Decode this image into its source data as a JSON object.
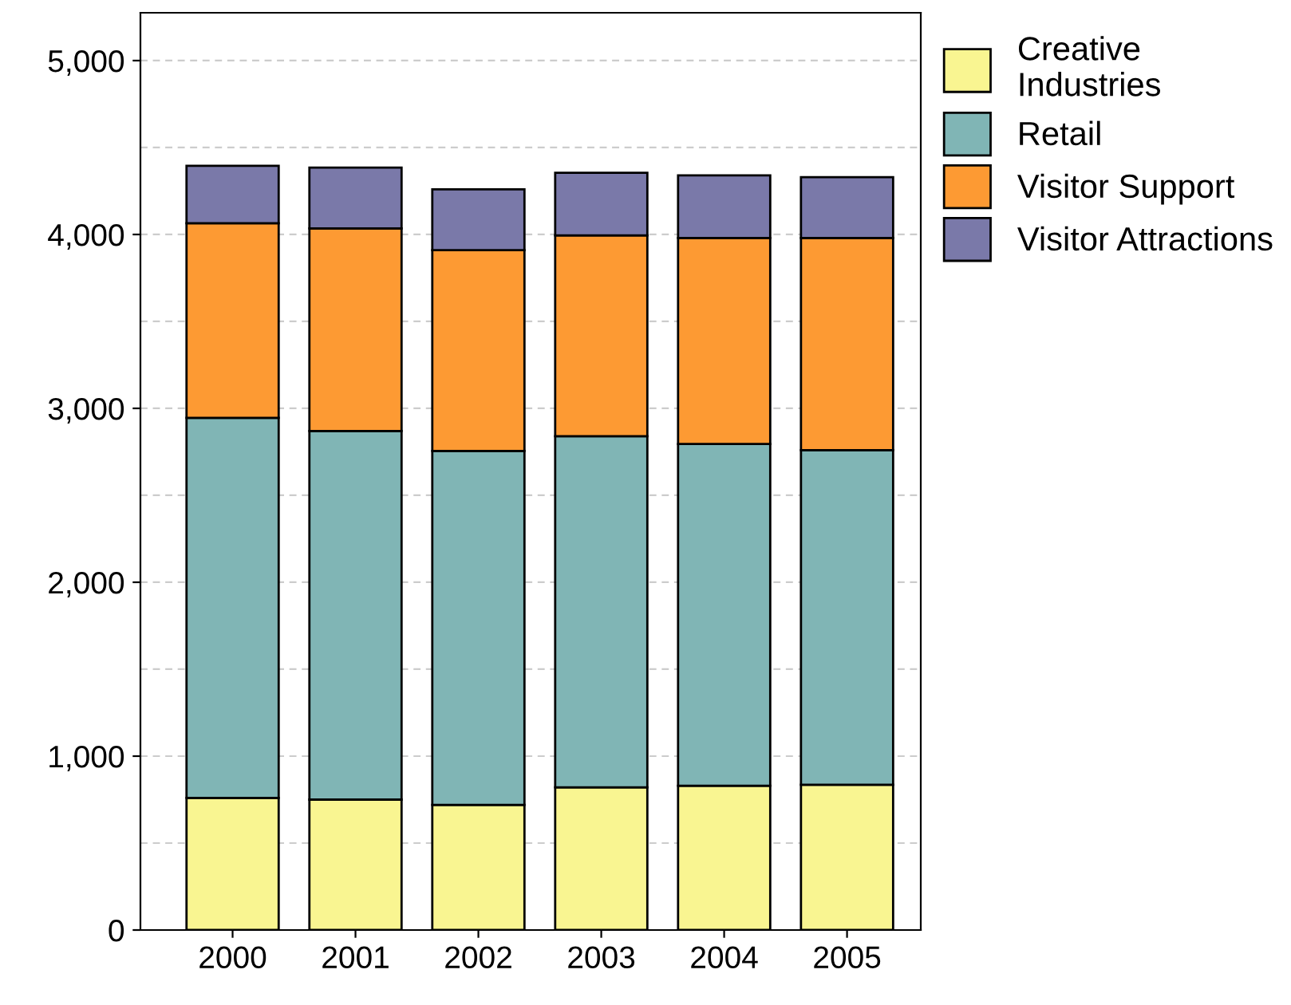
{
  "chart_data": {
    "type": "bar",
    "stacked": true,
    "categories": [
      "2000",
      "2001",
      "2002",
      "2003",
      "2004",
      "2005"
    ],
    "series": [
      {
        "name": "Creative Industries",
        "color": "#f9f591",
        "values": [
          760,
          750,
          720,
          820,
          830,
          835
        ]
      },
      {
        "name": "Retail",
        "color": "#80b5b5",
        "values": [
          2185,
          2120,
          2035,
          2020,
          1965,
          1925
        ]
      },
      {
        "name": "Visitor Support",
        "color": "#fd9a33",
        "values": [
          1120,
          1165,
          1155,
          1155,
          1185,
          1220
        ]
      },
      {
        "name": "Visitor Attractions",
        "color": "#7a79a9",
        "values": [
          330,
          350,
          350,
          360,
          360,
          350
        ]
      }
    ],
    "ylim": [
      0,
      5275
    ],
    "yticks": [
      0,
      {
        "value": 500,
        "label": null
      },
      {
        "value": 1000,
        "label": "1,000"
      },
      {
        "value": 1500,
        "label": null
      },
      {
        "value": 2000,
        "label": "2,000"
      },
      {
        "value": 2500,
        "label": null
      },
      {
        "value": 3000,
        "label": "3,000"
      },
      {
        "value": 3500,
        "label": null
      },
      {
        "value": 4000,
        "label": "4,000"
      },
      {
        "value": 4500,
        "label": null
      },
      {
        "value": 5000,
        "label": "5,000"
      }
    ],
    "grid": "y",
    "legend": "top right"
  }
}
